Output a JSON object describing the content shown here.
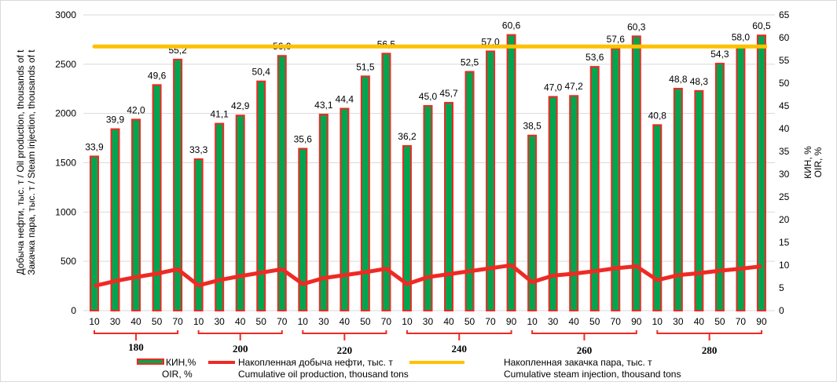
{
  "chart_data": {
    "type": "bar",
    "left_axis": {
      "title_line1": "Добыча нефти, тыс. т / Oil production, thousands of t",
      "title_line2": "Закачка пара, тыс. т / Steam injection, thousands of t",
      "ylim": [
        0,
        3000
      ],
      "ticks": [
        0,
        500,
        1000,
        1500,
        2000,
        2500,
        3000
      ]
    },
    "right_axis": {
      "title_line1": "КИН, %",
      "title_line2": "OIR, %",
      "ylim": [
        0,
        65
      ],
      "ticks": [
        0,
        5,
        10,
        15,
        20,
        25,
        30,
        35,
        40,
        45,
        50,
        55,
        60,
        65
      ]
    },
    "groups": [
      {
        "label": "180",
        "x": [
          "10",
          "30",
          "40",
          "50",
          "70"
        ]
      },
      {
        "label": "200",
        "x": [
          "10",
          "30",
          "40",
          "50",
          "70"
        ]
      },
      {
        "label": "220",
        "x": [
          "10",
          "30",
          "40",
          "50",
          "70"
        ]
      },
      {
        "label": "240",
        "x": [
          "10",
          "30",
          "40",
          "50",
          "70",
          "90"
        ]
      },
      {
        "label": "260",
        "x": [
          "10",
          "30",
          "40",
          "50",
          "70",
          "90"
        ]
      },
      {
        "label": "280",
        "x": [
          "10",
          "30",
          "40",
          "50",
          "70",
          "90"
        ]
      }
    ],
    "series": [
      {
        "name": "КИН,%",
        "name2": "OIR, %",
        "type": "bar",
        "axis": "right",
        "color": "#00a54f",
        "border": "#ee2a24",
        "values": [
          33.9,
          39.9,
          42.0,
          49.6,
          55.2,
          33.3,
          41.1,
          42.9,
          50.4,
          56.0,
          35.6,
          43.1,
          44.4,
          51.5,
          56.5,
          36.2,
          45.0,
          45.7,
          52.5,
          57.0,
          60.6,
          38.5,
          47.0,
          47.2,
          53.6,
          57.6,
          60.3,
          40.8,
          48.8,
          48.3,
          54.3,
          58.0,
          60.5
        ],
        "labels": [
          "33,9",
          "39,9",
          "42,0",
          "49,6",
          "55,2",
          "33,3",
          "41,1",
          "42,9",
          "50,4",
          "56,0",
          "35,6",
          "43,1",
          "44,4",
          "51,5",
          "56,5",
          "36,2",
          "45,0",
          "45,7",
          "52,5",
          "57,0",
          "60,6",
          "38,5",
          "47,0",
          "47,2",
          "53,6",
          "57,6",
          "60,3",
          "40,8",
          "48,8",
          "48,3",
          "54,3",
          "58,0",
          "60,5"
        ]
      },
      {
        "name": "Накопленная добыча нефти, тыс. т",
        "name2": "Cumulative oil production, thousand tons",
        "type": "line",
        "axis": "left",
        "color": "#ee2a24",
        "values": [
          250,
          300,
          340,
          375,
          420,
          255,
          310,
          350,
          385,
          420,
          270,
          330,
          360,
          390,
          425,
          270,
          340,
          370,
          400,
          430,
          460,
          290,
          355,
          375,
          400,
          430,
          450,
          310,
          360,
          380,
          405,
          425,
          450
        ]
      },
      {
        "name": "Накопленная закачка пара, тыс. т",
        "name2": "Cumulative steam injection, thousand tons",
        "type": "line",
        "axis": "left",
        "color": "#ffc000",
        "values": [
          2680,
          2680,
          2680,
          2680,
          2680,
          2680,
          2680,
          2680,
          2680,
          2680,
          2680,
          2680,
          2680,
          2680,
          2680,
          2680,
          2680,
          2680,
          2680,
          2680,
          2680,
          2680,
          2680,
          2680,
          2680,
          2680,
          2680,
          2680,
          2680,
          2680,
          2680,
          2680,
          2680
        ]
      }
    ],
    "grid": true,
    "legend": "bottom"
  }
}
